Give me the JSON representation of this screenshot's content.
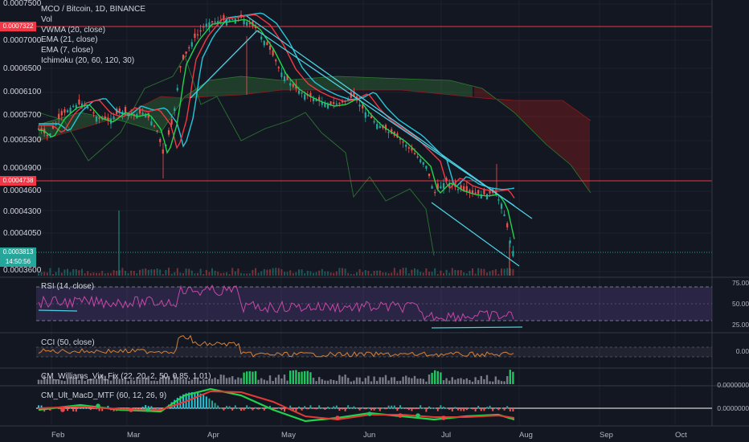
{
  "chart": {
    "symbol_line": "MCO / Bitcoin, 1D, BINANCE",
    "overlays": [
      "Vol",
      "VWMA (20, close)",
      "EMA (21, close)",
      "EMA (7, close)",
      "Ichimoku (20, 60, 120, 30)"
    ],
    "price_ticks": [
      "0.0007500",
      "0.0007000",
      "0.0006500",
      "0.0006100",
      "0.0005700",
      "0.0005300",
      "0.0004900",
      "0.0004600",
      "0.0004300",
      "0.0004050",
      "0.0003600"
    ],
    "tags": {
      "upper_level": "0.0007322",
      "lower_level": "0.0004738",
      "last_price": "0.0003813",
      "countdown": "14:50:56"
    },
    "colors": {
      "background": "#131722",
      "level_line": "#f23645",
      "trendline": "#4dd0e1",
      "vwma": "#26c6da",
      "ema21": "#f23645",
      "ema7": "#22d44d",
      "up_candle": "#26a69a",
      "down_candle": "#ef5350"
    }
  },
  "indicators": {
    "rsi": {
      "title": "RSI (14, close)",
      "ticks": [
        "75.00",
        "50.00",
        "25.00"
      ]
    },
    "cci": {
      "title": "CCI (50, close)",
      "ticks": [
        "0.00"
      ]
    },
    "williams_vix": {
      "title": "CM_Williams_Vix_Fix (22, 20, 2, 50, 0.85, 1.01)",
      "ticks": [
        "0.0000000"
      ]
    },
    "ult_macd": {
      "title": "CM_Ult_MacD_MTF (60, 12, 26, 9)",
      "ticks": [
        "0.0000000"
      ]
    }
  },
  "time_axis": [
    "Feb",
    "Mar",
    "Apr",
    "May",
    "Jun",
    "Jul",
    "Aug",
    "Sep",
    "Oct"
  ]
}
